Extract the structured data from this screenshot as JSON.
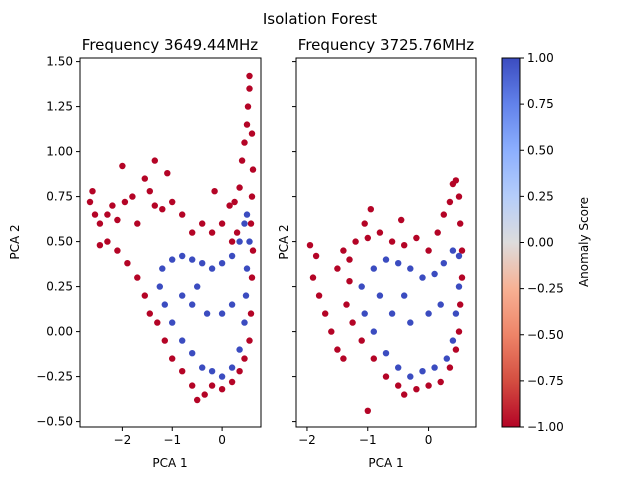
{
  "suptitle": "Isolation Forest",
  "colorbar": {
    "label": "Anomaly Score",
    "ticks": [
      "1.00",
      "0.75",
      "0.50",
      "0.25",
      "0.00",
      "−0.25",
      "−0.50",
      "−0.75",
      "−1.00"
    ],
    "range": [
      -1.0,
      1.0
    ],
    "colormap": "coolwarm"
  },
  "colors": {
    "normal": "#3b4cc0",
    "anomaly": "#b40426"
  },
  "chart_data": [
    {
      "type": "scatter",
      "title": "Frequency 3649.44MHz",
      "xlabel": "PCA 1",
      "ylabel": "PCA 2",
      "xlim": [
        -2.85,
        0.78
      ],
      "ylim": [
        -0.53,
        1.52
      ],
      "xticks": [
        -2,
        -1,
        0
      ],
      "xtick_labels": [
        "−2",
        "−1",
        "0"
      ],
      "yticks": [
        -0.5,
        -0.25,
        0.0,
        0.25,
        0.5,
        0.75,
        1.0,
        1.25,
        1.5
      ],
      "ytick_labels": [
        "−0.50",
        "−0.25",
        "0.00",
        "0.25",
        "0.50",
        "0.75",
        "1.00",
        "1.25",
        "1.50"
      ],
      "grid": false,
      "series": [
        {
          "values": [
            [
              -2.6,
              0.78
            ],
            [
              -2.65,
              0.72
            ],
            [
              -2.55,
              0.65
            ],
            [
              -2.45,
              0.6
            ],
            [
              -2.3,
              0.65
            ],
            [
              -2.2,
              0.7
            ],
            [
              -2.1,
              0.62
            ],
            [
              -1.95,
              0.72
            ],
            [
              -1.8,
              0.75
            ],
            [
              -1.7,
              0.6
            ],
            [
              -1.55,
              0.85
            ],
            [
              -1.45,
              0.78
            ],
            [
              -1.35,
              0.7
            ],
            [
              -1.2,
              0.68
            ],
            [
              -1.0,
              0.72
            ],
            [
              -0.8,
              0.65
            ],
            [
              -0.6,
              0.55
            ],
            [
              -0.4,
              0.6
            ],
            [
              -0.2,
              0.55
            ],
            [
              0.0,
              0.6
            ],
            [
              0.15,
              0.7
            ],
            [
              0.2,
              0.5
            ],
            [
              0.3,
              0.55
            ],
            [
              0.35,
              0.8
            ],
            [
              0.4,
              0.95
            ],
            [
              0.45,
              1.05
            ],
            [
              0.5,
              1.15
            ],
            [
              0.52,
              1.25
            ],
            [
              0.55,
              1.35
            ],
            [
              0.55,
              1.42
            ],
            [
              0.6,
              1.1
            ],
            [
              0.62,
              0.9
            ],
            [
              0.6,
              0.75
            ],
            [
              0.58,
              0.6
            ],
            [
              0.62,
              0.45
            ],
            [
              0.6,
              0.3
            ],
            [
              0.58,
              0.1
            ],
            [
              0.55,
              -0.05
            ],
            [
              0.45,
              -0.15
            ],
            [
              0.35,
              -0.22
            ],
            [
              0.2,
              -0.28
            ],
            [
              0.0,
              -0.32
            ],
            [
              -0.2,
              -0.3
            ],
            [
              -0.35,
              -0.35
            ],
            [
              -0.5,
              -0.38
            ],
            [
              -0.6,
              -0.3
            ],
            [
              -0.8,
              -0.22
            ],
            [
              -1.0,
              -0.15
            ],
            [
              -1.15,
              -0.05
            ],
            [
              -1.3,
              0.05
            ],
            [
              -1.45,
              0.1
            ],
            [
              -1.55,
              0.2
            ],
            [
              -1.7,
              0.3
            ],
            [
              -1.9,
              0.38
            ],
            [
              -2.1,
              0.45
            ],
            [
              -2.3,
              0.5
            ],
            [
              -2.45,
              0.48
            ],
            [
              -1.35,
              0.95
            ],
            [
              -1.1,
              0.88
            ],
            [
              -2.0,
              0.92
            ],
            [
              -0.15,
              0.78
            ],
            [
              0.25,
              0.72
            ]
          ]
        },
        {
          "values": [
            [
              -1.2,
              0.35
            ],
            [
              -1.0,
              0.4
            ],
            [
              -0.8,
              0.42
            ],
            [
              -0.6,
              0.4
            ],
            [
              -0.4,
              0.38
            ],
            [
              -0.2,
              0.35
            ],
            [
              0.0,
              0.38
            ],
            [
              0.2,
              0.42
            ],
            [
              0.35,
              0.5
            ],
            [
              0.45,
              0.6
            ],
            [
              0.5,
              0.65
            ],
            [
              0.55,
              0.5
            ],
            [
              0.5,
              0.35
            ],
            [
              0.48,
              0.2
            ],
            [
              0.45,
              0.05
            ],
            [
              0.35,
              -0.1
            ],
            [
              0.2,
              -0.2
            ],
            [
              0.0,
              -0.25
            ],
            [
              -0.2,
              -0.22
            ],
            [
              -0.4,
              -0.2
            ],
            [
              -0.6,
              -0.12
            ],
            [
              -0.8,
              -0.05
            ],
            [
              -1.0,
              0.05
            ],
            [
              -1.15,
              0.15
            ],
            [
              -1.25,
              0.25
            ],
            [
              -0.6,
              0.15
            ],
            [
              -0.3,
              0.1
            ],
            [
              0.0,
              0.1
            ],
            [
              0.2,
              0.15
            ],
            [
              -0.8,
              0.2
            ],
            [
              -0.5,
              0.25
            ]
          ]
        }
      ]
    },
    {
      "type": "scatter",
      "title": "Frequency 3725.76MHz",
      "xlabel": "PCA 1",
      "ylabel": "PCA 2",
      "xlim": [
        -2.18,
        0.78
      ],
      "ylim": [
        -0.53,
        1.52
      ],
      "xticks": [
        -2,
        -1,
        0
      ],
      "xtick_labels": [
        "−2",
        "−1",
        "0"
      ],
      "yticks": [
        -0.5,
        -0.25,
        0.0,
        0.25,
        0.5,
        0.75,
        1.0,
        1.25,
        1.5
      ],
      "grid": false,
      "series": [
        {
          "values": [
            [
              -1.95,
              0.48
            ],
            [
              -1.85,
              0.42
            ],
            [
              -1.9,
              0.3
            ],
            [
              -1.8,
              0.2
            ],
            [
              -1.7,
              0.1
            ],
            [
              -1.6,
              0.0
            ],
            [
              -1.5,
              -0.1
            ],
            [
              -1.4,
              -0.15
            ],
            [
              -1.5,
              0.35
            ],
            [
              -1.4,
              0.45
            ],
            [
              -1.3,
              0.4
            ],
            [
              -1.2,
              0.5
            ],
            [
              -1.05,
              0.6
            ],
            [
              -1.0,
              0.52
            ],
            [
              -0.8,
              0.55
            ],
            [
              -0.6,
              0.5
            ],
            [
              -0.4,
              0.48
            ],
            [
              -0.2,
              0.52
            ],
            [
              0.0,
              0.45
            ],
            [
              0.15,
              0.55
            ],
            [
              0.25,
              0.65
            ],
            [
              0.35,
              0.72
            ],
            [
              0.4,
              0.82
            ],
            [
              0.45,
              0.84
            ],
            [
              0.5,
              0.75
            ],
            [
              0.52,
              0.6
            ],
            [
              0.55,
              0.45
            ],
            [
              0.55,
              0.3
            ],
            [
              0.52,
              0.15
            ],
            [
              0.5,
              0.0
            ],
            [
              0.45,
              -0.1
            ],
            [
              0.35,
              -0.2
            ],
            [
              0.2,
              -0.28
            ],
            [
              0.0,
              -0.3
            ],
            [
              -0.2,
              -0.32
            ],
            [
              -0.4,
              -0.35
            ],
            [
              -0.5,
              -0.3
            ],
            [
              -0.7,
              -0.25
            ],
            [
              -0.9,
              -0.15
            ],
            [
              -1.0,
              -0.44
            ],
            [
              -1.1,
              -0.05
            ],
            [
              -1.25,
              0.05
            ],
            [
              -1.35,
              0.15
            ],
            [
              -1.3,
              0.28
            ],
            [
              -0.95,
              0.68
            ],
            [
              -0.45,
              0.62
            ]
          ]
        },
        {
          "values": [
            [
              -1.1,
              0.25
            ],
            [
              -0.9,
              0.35
            ],
            [
              -0.7,
              0.4
            ],
            [
              -0.5,
              0.38
            ],
            [
              -0.3,
              0.35
            ],
            [
              -0.1,
              0.3
            ],
            [
              0.1,
              0.32
            ],
            [
              0.25,
              0.38
            ],
            [
              0.4,
              0.45
            ],
            [
              0.5,
              0.42
            ],
            [
              0.5,
              0.25
            ],
            [
              0.45,
              0.1
            ],
            [
              0.4,
              -0.05
            ],
            [
              0.3,
              -0.15
            ],
            [
              0.1,
              -0.2
            ],
            [
              -0.1,
              -0.22
            ],
            [
              -0.3,
              -0.25
            ],
            [
              -0.5,
              -0.2
            ],
            [
              -0.7,
              -0.12
            ],
            [
              -0.9,
              0.0
            ],
            [
              -1.05,
              0.1
            ],
            [
              -0.6,
              0.1
            ],
            [
              -0.3,
              0.05
            ],
            [
              0.0,
              0.1
            ],
            [
              -0.8,
              0.2
            ],
            [
              -0.4,
              0.2
            ],
            [
              0.2,
              0.15
            ]
          ]
        }
      ]
    }
  ]
}
